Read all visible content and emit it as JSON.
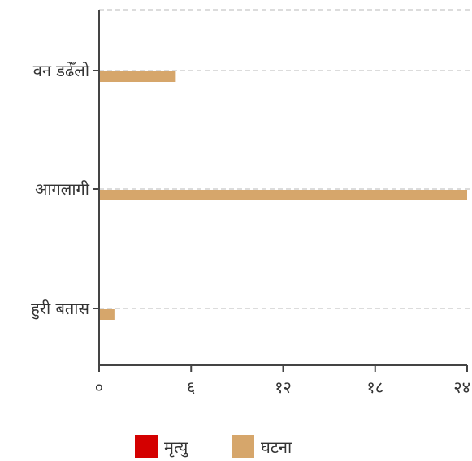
{
  "chart_data": {
    "type": "bar",
    "orientation": "horizontal",
    "categories": [
      "वन डढेँलो",
      "आगलागी",
      "हुरी बतास"
    ],
    "series": [
      {
        "name": "मृत्यु",
        "color": "#d40000",
        "values": [
          0,
          0,
          0
        ]
      },
      {
        "name": "घटना",
        "color": "#d6a66b",
        "values": [
          5,
          24,
          1
        ]
      }
    ],
    "x_ticks": [
      {
        "value": 0,
        "label": "०"
      },
      {
        "value": 6,
        "label": "६"
      },
      {
        "value": 12,
        "label": "१२"
      },
      {
        "value": 18,
        "label": "१८"
      },
      {
        "value": 24,
        "label": "२४"
      }
    ],
    "xlim": [
      0,
      24
    ],
    "grid": true,
    "legend_position": "bottom"
  }
}
